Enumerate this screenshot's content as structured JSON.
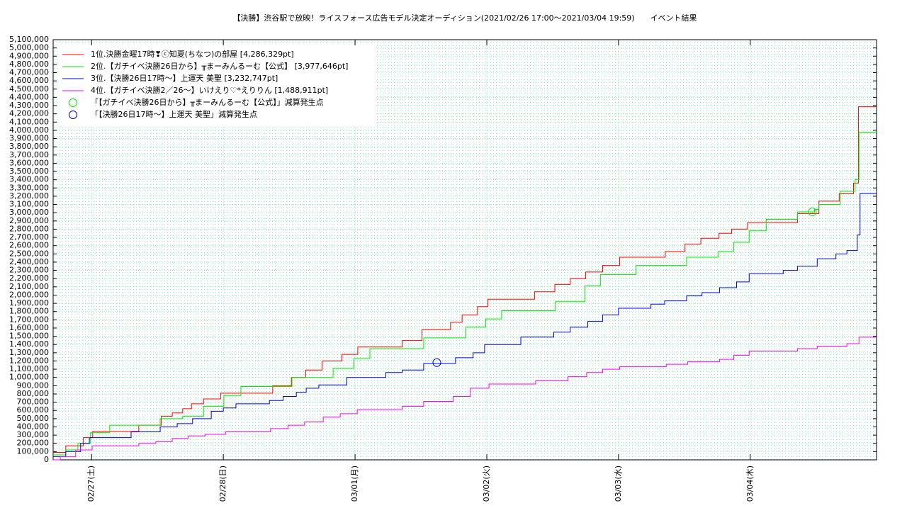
{
  "chart_data": {
    "type": "step",
    "title": "【決勝】渋谷駅で放映！ライスフォース広告モデル決定オーディション(2021/02/26 17:00～2021/03/04 19:59)　　イベント結果",
    "xlim": [
      0,
      150
    ],
    "xticks": [
      {
        "value": 7,
        "label": "02/27(土)"
      },
      {
        "value": 31,
        "label": "02/28(日)"
      },
      {
        "value": 55,
        "label": "03/01(月)"
      },
      {
        "value": 79,
        "label": "03/02(火)"
      },
      {
        "value": 103,
        "label": "03/03(水)"
      },
      {
        "value": 127,
        "label": "03/04(木)"
      }
    ],
    "ylim": [
      0,
      5100000
    ],
    "yticks": [
      0,
      {
        "value": 100000,
        "label": "100,000"
      },
      {
        "value": 200000,
        "label": "200,000"
      },
      {
        "value": 300000,
        "label": "300,000"
      },
      {
        "value": 400000,
        "label": "400,000"
      },
      {
        "value": 500000,
        "label": "500,000"
      },
      {
        "value": 600000,
        "label": "600,000"
      },
      {
        "value": 700000,
        "label": "700,000"
      },
      {
        "value": 800000,
        "label": "800,000"
      },
      {
        "value": 900000,
        "label": "900,000"
      },
      {
        "value": 1000000,
        "label": "1,000,000"
      },
      {
        "value": 1100000,
        "label": "1,100,000"
      },
      {
        "value": 1200000,
        "label": "1,200,000"
      },
      {
        "value": 1300000,
        "label": "1,300,000"
      },
      {
        "value": 1400000,
        "label": "1,400,000"
      },
      {
        "value": 1500000,
        "label": "1,500,000"
      },
      {
        "value": 1600000,
        "label": "1,600,000"
      },
      {
        "value": 1700000,
        "label": "1,700,000"
      },
      {
        "value": 1800000,
        "label": "1,800,000"
      },
      {
        "value": 1900000,
        "label": "1,900,000"
      },
      {
        "value": 2000000,
        "label": "2,000,000"
      },
      {
        "value": 2100000,
        "label": "2,100,000"
      },
      {
        "value": 2200000,
        "label": "2,200,000"
      },
      {
        "value": 2300000,
        "label": "2,300,000"
      },
      {
        "value": 2400000,
        "label": "2,400,000"
      },
      {
        "value": 2500000,
        "label": "2,500,000"
      },
      {
        "value": 2600000,
        "label": "2,600,000"
      },
      {
        "value": 2700000,
        "label": "2,700,000"
      },
      {
        "value": 2800000,
        "label": "2,800,000"
      },
      {
        "value": 2900000,
        "label": "2,900,000"
      },
      {
        "value": 3000000,
        "label": "3,000,000"
      },
      {
        "value": 3100000,
        "label": "3,100,000"
      },
      {
        "value": 3200000,
        "label": "3,200,000"
      },
      {
        "value": 3300000,
        "label": "3,300,000"
      },
      {
        "value": 3400000,
        "label": "3,400,000"
      },
      {
        "value": 3500000,
        "label": "3,500,000"
      },
      {
        "value": 3600000,
        "label": "3,600,000"
      },
      {
        "value": 3700000,
        "label": "3,700,000"
      },
      {
        "value": 3800000,
        "label": "3,800,000"
      },
      {
        "value": 3900000,
        "label": "3,900,000"
      },
      {
        "value": 4000000,
        "label": "4,000,000"
      },
      {
        "value": 4100000,
        "label": "4,100,000"
      },
      {
        "value": 4200000,
        "label": "4,200,000"
      },
      {
        "value": 4300000,
        "label": "4,300,000"
      },
      {
        "value": 4400000,
        "label": "4,400,000"
      },
      {
        "value": 4500000,
        "label": "4,500,000"
      },
      {
        "value": 4600000,
        "label": "4,600,000"
      },
      {
        "value": 4700000,
        "label": "4,700,000"
      },
      {
        "value": 4800000,
        "label": "4,800,000"
      },
      {
        "value": 4900000,
        "label": "4,900,000"
      },
      {
        "value": 5000000,
        "label": "5,000,000"
      },
      {
        "value": 5100000,
        "label": "5,100,000"
      }
    ],
    "grid": true,
    "series": [
      {
        "name": "1位.決勝金曜17時❣ⓒ知夏(ちなつ)の部屋 [4,286,329pt]",
        "color": "#ff0000",
        "x": [
          0,
          2.3,
          5.5,
          7.2,
          15.6,
          19.7,
          21.7,
          23.6,
          25.2,
          27.4,
          30.5,
          40,
          43.4,
          46,
          49,
          52.6,
          55.5,
          63.6,
          67.2,
          72.4,
          74.5,
          77.3,
          79.2,
          87.7,
          91.4,
          94.2,
          97,
          100.1,
          103.2,
          111.5,
          115.1,
          118,
          121.3,
          123.6,
          126.5,
          135.6,
          139.5,
          143.2,
          145.8,
          146.7
        ],
        "values": [
          90000,
          170000,
          270000,
          345000,
          420000,
          530000,
          570000,
          620000,
          680000,
          740000,
          810000,
          900000,
          1000000,
          1090000,
          1200000,
          1280000,
          1370000,
          1450000,
          1580000,
          1670000,
          1760000,
          1860000,
          1950000,
          2040000,
          2130000,
          2200000,
          2280000,
          2360000,
          2460000,
          2530000,
          2620000,
          2690000,
          2750000,
          2800000,
          2880000,
          2990000,
          3140000,
          3230000,
          3360000,
          4286329
        ]
      },
      {
        "name": "2位.【ガチイベ決勝26日から】╥まーみんるーむ【公式】 [3,977,646pt]",
        "color": "#00ee00",
        "x": [
          0,
          2.3,
          4.5,
          6.8,
          10.3,
          19.5,
          23.6,
          27.4,
          31.1,
          34.2,
          43.5,
          51,
          54.8,
          57.7,
          67.5,
          75.2,
          78.8,
          81.7,
          91.5,
          96.9,
          99.7,
          106.2,
          115.4,
          121.2,
          124,
          126.8,
          129.9,
          135.6,
          138.7,
          139.5,
          143.4,
          146.1,
          146.8
        ],
        "values": [
          60000,
          120000,
          200000,
          330000,
          420000,
          500000,
          530000,
          650000,
          780000,
          890000,
          1000000,
          1110000,
          1230000,
          1350000,
          1480000,
          1610000,
          1710000,
          1810000,
          1920000,
          2110000,
          2250000,
          2360000,
          2460000,
          2530000,
          2640000,
          2780000,
          2920000,
          3010000,
          3040000,
          3100000,
          3260000,
          3400000,
          3977646
        ]
      },
      {
        "name": "3位.【決勝26日17時～】上運天 美聖 [3,232,747pt]",
        "color": "#0000dd",
        "x": [
          0,
          2.3,
          5,
          6.6,
          14.2,
          19.5,
          22.6,
          25.4,
          28.8,
          31,
          33.3,
          39.4,
          41.9,
          44.3,
          46.1,
          48.4,
          53.5,
          60.6,
          63.6,
          67.5,
          73.3,
          76.5,
          78.6,
          85.2,
          91.2,
          94.2,
          97.4,
          100.1,
          103,
          108.9,
          111.4,
          115.4,
          118.2,
          121.4,
          124.5,
          126.8,
          133,
          135.6,
          139.2,
          142.6,
          144.6,
          146.5,
          147
        ],
        "values": [
          40000,
          100000,
          200000,
          270000,
          340000,
          400000,
          440000,
          500000,
          590000,
          630000,
          680000,
          720000,
          770000,
          820000,
          870000,
          910000,
          1000000,
          1060000,
          1090000,
          1170000,
          1240000,
          1300000,
          1400000,
          1490000,
          1550000,
          1610000,
          1680000,
          1760000,
          1840000,
          1890000,
          1930000,
          1990000,
          2030000,
          2090000,
          2160000,
          2260000,
          2300000,
          2350000,
          2440000,
          2500000,
          2540000,
          2730000,
          3232747
        ]
      },
      {
        "name": "4位.【ガチイベ決勝2／26～】いけえり♡*えりりん [1,488,911pt]",
        "color": "#ff00ff",
        "x": [
          0,
          1.3,
          4.1,
          7.1,
          15.6,
          18.7,
          21.7,
          24.6,
          27.7,
          31.4,
          39.6,
          42.8,
          45.8,
          49.2,
          52.3,
          55.4,
          63.6,
          67.5,
          72.9,
          76,
          79.4,
          87.9,
          93.8,
          97.2,
          100.1,
          103.2,
          111.7,
          115.6,
          121.4,
          124,
          126.8,
          135.6,
          139.2,
          144.6,
          146.8
        ],
        "values": [
          0,
          40000,
          120000,
          170000,
          200000,
          220000,
          260000,
          290000,
          310000,
          340000,
          380000,
          420000,
          460000,
          520000,
          560000,
          610000,
          650000,
          710000,
          770000,
          870000,
          920000,
          960000,
          1010000,
          1060000,
          1100000,
          1130000,
          1160000,
          1190000,
          1220000,
          1270000,
          1320000,
          1350000,
          1380000,
          1410000,
          1488911
        ]
      }
    ],
    "markers": [
      {
        "name": "「【ガチイベ決勝26日から】╥まーみんるーむ【公式】」減算発生点",
        "color": "#00ee00",
        "x": [
          138.3
        ],
        "values": [
          3010000
        ]
      },
      {
        "name": "「【決勝26日17時～】上運天 美聖」減算発生点",
        "color": "#0000dd",
        "x": [
          69.9
        ],
        "values": [
          1180000
        ]
      }
    ],
    "legend": "upper left"
  }
}
